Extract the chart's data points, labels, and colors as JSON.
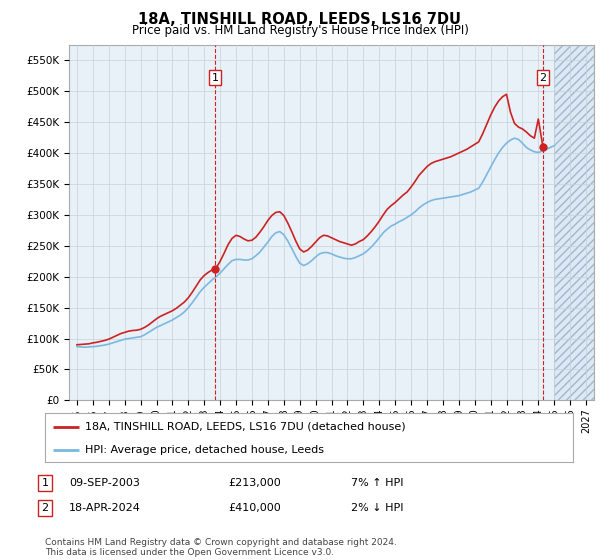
{
  "title": "18A, TINSHILL ROAD, LEEDS, LS16 7DU",
  "subtitle": "Price paid vs. HM Land Registry's House Price Index (HPI)",
  "legend_line1": "18A, TINSHILL ROAD, LEEDS, LS16 7DU (detached house)",
  "legend_line2": "HPI: Average price, detached house, Leeds",
  "annotation1": {
    "label": "1",
    "date": "09-SEP-2003",
    "price": "£213,000",
    "hpi": "7% ↑ HPI",
    "x_year": 2003.69,
    "y_val": 213000
  },
  "annotation2": {
    "label": "2",
    "date": "18-APR-2024",
    "price": "£410,000",
    "hpi": "2% ↓ HPI",
    "x_year": 2024.29,
    "y_val": 410000
  },
  "copyright": "Contains HM Land Registry data © Crown copyright and database right 2024.\nThis data is licensed under the Open Government Licence v3.0.",
  "ylim": [
    0,
    575000
  ],
  "yticks": [
    0,
    50000,
    100000,
    150000,
    200000,
    250000,
    300000,
    350000,
    400000,
    450000,
    500000,
    550000
  ],
  "ytick_labels": [
    "£0",
    "£50K",
    "£100K",
    "£150K",
    "£200K",
    "£250K",
    "£300K",
    "£350K",
    "£400K",
    "£450K",
    "£500K",
    "£550K"
  ],
  "xlim_start": 1994.5,
  "xlim_end": 2027.5,
  "xticks": [
    1995,
    1996,
    1997,
    1998,
    1999,
    2000,
    2001,
    2002,
    2003,
    2004,
    2005,
    2006,
    2007,
    2008,
    2009,
    2010,
    2011,
    2012,
    2013,
    2014,
    2015,
    2016,
    2017,
    2018,
    2019,
    2020,
    2021,
    2022,
    2023,
    2024,
    2025,
    2026,
    2027
  ],
  "hpi_color": "#7bb8e0",
  "price_color": "#cc2222",
  "bg_color": "#e8f0f8",
  "grid_color": "#c8d0d8",
  "hatch_start": 2025.0,
  "hpi_data": [
    [
      1995.0,
      87000
    ],
    [
      1995.25,
      86500
    ],
    [
      1995.5,
      86000
    ],
    [
      1995.75,
      86500
    ],
    [
      1996.0,
      87000
    ],
    [
      1996.25,
      87500
    ],
    [
      1996.5,
      88500
    ],
    [
      1996.75,
      89500
    ],
    [
      1997.0,
      91000
    ],
    [
      1997.25,
      93000
    ],
    [
      1997.5,
      95000
    ],
    [
      1997.75,
      97000
    ],
    [
      1998.0,
      99000
    ],
    [
      1998.25,
      100000
    ],
    [
      1998.5,
      101000
    ],
    [
      1998.75,
      102000
    ],
    [
      1999.0,
      103000
    ],
    [
      1999.25,
      106000
    ],
    [
      1999.5,
      110000
    ],
    [
      1999.75,
      114000
    ],
    [
      2000.0,
      118000
    ],
    [
      2000.25,
      121000
    ],
    [
      2000.5,
      124000
    ],
    [
      2000.75,
      127000
    ],
    [
      2001.0,
      130000
    ],
    [
      2001.25,
      134000
    ],
    [
      2001.5,
      138000
    ],
    [
      2001.75,
      143000
    ],
    [
      2002.0,
      150000
    ],
    [
      2002.25,
      158000
    ],
    [
      2002.5,
      167000
    ],
    [
      2002.75,
      176000
    ],
    [
      2003.0,
      183000
    ],
    [
      2003.25,
      189000
    ],
    [
      2003.5,
      195000
    ],
    [
      2003.75,
      200000
    ],
    [
      2004.0,
      206000
    ],
    [
      2004.25,
      213000
    ],
    [
      2004.5,
      220000
    ],
    [
      2004.75,
      226000
    ],
    [
      2005.0,
      228000
    ],
    [
      2005.25,
      228000
    ],
    [
      2005.5,
      227000
    ],
    [
      2005.75,
      227000
    ],
    [
      2006.0,
      229000
    ],
    [
      2006.25,
      234000
    ],
    [
      2006.5,
      240000
    ],
    [
      2006.75,
      248000
    ],
    [
      2007.0,
      256000
    ],
    [
      2007.25,
      265000
    ],
    [
      2007.5,
      271000
    ],
    [
      2007.75,
      273000
    ],
    [
      2008.0,
      268000
    ],
    [
      2008.25,
      258000
    ],
    [
      2008.5,
      246000
    ],
    [
      2008.75,
      233000
    ],
    [
      2009.0,
      222000
    ],
    [
      2009.25,
      218000
    ],
    [
      2009.5,
      221000
    ],
    [
      2009.75,
      226000
    ],
    [
      2010.0,
      232000
    ],
    [
      2010.25,
      237000
    ],
    [
      2010.5,
      239000
    ],
    [
      2010.75,
      239000
    ],
    [
      2011.0,
      237000
    ],
    [
      2011.25,
      234000
    ],
    [
      2011.5,
      232000
    ],
    [
      2011.75,
      230000
    ],
    [
      2012.0,
      229000
    ],
    [
      2012.25,
      229000
    ],
    [
      2012.5,
      231000
    ],
    [
      2012.75,
      234000
    ],
    [
      2013.0,
      237000
    ],
    [
      2013.25,
      242000
    ],
    [
      2013.5,
      248000
    ],
    [
      2013.75,
      255000
    ],
    [
      2014.0,
      263000
    ],
    [
      2014.25,
      271000
    ],
    [
      2014.5,
      277000
    ],
    [
      2014.75,
      282000
    ],
    [
      2015.0,
      285000
    ],
    [
      2015.25,
      289000
    ],
    [
      2015.5,
      292000
    ],
    [
      2015.75,
      296000
    ],
    [
      2016.0,
      300000
    ],
    [
      2016.25,
      305000
    ],
    [
      2016.5,
      311000
    ],
    [
      2016.75,
      316000
    ],
    [
      2017.0,
      320000
    ],
    [
      2017.25,
      323000
    ],
    [
      2017.5,
      325000
    ],
    [
      2017.75,
      326000
    ],
    [
      2018.0,
      327000
    ],
    [
      2018.25,
      328000
    ],
    [
      2018.5,
      329000
    ],
    [
      2018.75,
      330000
    ],
    [
      2019.0,
      331000
    ],
    [
      2019.25,
      333000
    ],
    [
      2019.5,
      335000
    ],
    [
      2019.75,
      337000
    ],
    [
      2020.0,
      340000
    ],
    [
      2020.25,
      343000
    ],
    [
      2020.5,
      353000
    ],
    [
      2020.75,
      365000
    ],
    [
      2021.0,
      377000
    ],
    [
      2021.25,
      389000
    ],
    [
      2021.5,
      400000
    ],
    [
      2021.75,
      409000
    ],
    [
      2022.0,
      416000
    ],
    [
      2022.25,
      421000
    ],
    [
      2022.5,
      424000
    ],
    [
      2022.75,
      422000
    ],
    [
      2023.0,
      416000
    ],
    [
      2023.25,
      409000
    ],
    [
      2023.5,
      405000
    ],
    [
      2023.75,
      402000
    ],
    [
      2024.0,
      401000
    ],
    [
      2024.25,
      403000
    ],
    [
      2024.5,
      406000
    ],
    [
      2024.75,
      409000
    ],
    [
      2025.0,
      412000
    ]
  ],
  "price_data": [
    [
      1995.0,
      90000
    ],
    [
      1995.25,
      90500
    ],
    [
      1995.5,
      91000
    ],
    [
      1995.75,
      91500
    ],
    [
      1996.0,
      93000
    ],
    [
      1996.25,
      94000
    ],
    [
      1996.5,
      95500
    ],
    [
      1996.75,
      97000
    ],
    [
      1997.0,
      99000
    ],
    [
      1997.25,
      102000
    ],
    [
      1997.5,
      105000
    ],
    [
      1997.75,
      108000
    ],
    [
      1998.0,
      110000
    ],
    [
      1998.25,
      112000
    ],
    [
      1998.5,
      113000
    ],
    [
      1998.75,
      113500
    ],
    [
      1999.0,
      115000
    ],
    [
      1999.25,
      118000
    ],
    [
      1999.5,
      122000
    ],
    [
      1999.75,
      127000
    ],
    [
      2000.0,
      132000
    ],
    [
      2000.25,
      136000
    ],
    [
      2000.5,
      139000
    ],
    [
      2000.75,
      142000
    ],
    [
      2001.0,
      145000
    ],
    [
      2001.25,
      149000
    ],
    [
      2001.5,
      154000
    ],
    [
      2001.75,
      159000
    ],
    [
      2002.0,
      166000
    ],
    [
      2002.25,
      175000
    ],
    [
      2002.5,
      185000
    ],
    [
      2002.75,
      195000
    ],
    [
      2003.0,
      202000
    ],
    [
      2003.25,
      207000
    ],
    [
      2003.5,
      211000
    ],
    [
      2003.69,
      213000
    ],
    [
      2003.75,
      214000
    ],
    [
      2004.0,
      225000
    ],
    [
      2004.25,
      238000
    ],
    [
      2004.5,
      252000
    ],
    [
      2004.75,
      262000
    ],
    [
      2005.0,
      267000
    ],
    [
      2005.25,
      265000
    ],
    [
      2005.5,
      261000
    ],
    [
      2005.75,
      258000
    ],
    [
      2006.0,
      259000
    ],
    [
      2006.25,
      264000
    ],
    [
      2006.5,
      272000
    ],
    [
      2006.75,
      281000
    ],
    [
      2007.0,
      291000
    ],
    [
      2007.25,
      299000
    ],
    [
      2007.5,
      304000
    ],
    [
      2007.75,
      305000
    ],
    [
      2008.0,
      299000
    ],
    [
      2008.25,
      287000
    ],
    [
      2008.5,
      273000
    ],
    [
      2008.75,
      258000
    ],
    [
      2009.0,
      245000
    ],
    [
      2009.25,
      240000
    ],
    [
      2009.5,
      243000
    ],
    [
      2009.75,
      249000
    ],
    [
      2010.0,
      256000
    ],
    [
      2010.25,
      263000
    ],
    [
      2010.5,
      267000
    ],
    [
      2010.75,
      266000
    ],
    [
      2011.0,
      263000
    ],
    [
      2011.25,
      260000
    ],
    [
      2011.5,
      257000
    ],
    [
      2011.75,
      255000
    ],
    [
      2012.0,
      253000
    ],
    [
      2012.25,
      251000
    ],
    [
      2012.5,
      253000
    ],
    [
      2012.75,
      257000
    ],
    [
      2013.0,
      260000
    ],
    [
      2013.25,
      266000
    ],
    [
      2013.5,
      273000
    ],
    [
      2013.75,
      281000
    ],
    [
      2014.0,
      290000
    ],
    [
      2014.25,
      300000
    ],
    [
      2014.5,
      309000
    ],
    [
      2014.75,
      315000
    ],
    [
      2015.0,
      320000
    ],
    [
      2015.25,
      326000
    ],
    [
      2015.5,
      332000
    ],
    [
      2015.75,
      337000
    ],
    [
      2016.0,
      345000
    ],
    [
      2016.25,
      354000
    ],
    [
      2016.5,
      364000
    ],
    [
      2016.75,
      371000
    ],
    [
      2017.0,
      378000
    ],
    [
      2017.25,
      383000
    ],
    [
      2017.5,
      386000
    ],
    [
      2017.75,
      388000
    ],
    [
      2018.0,
      390000
    ],
    [
      2018.25,
      392000
    ],
    [
      2018.5,
      394000
    ],
    [
      2018.75,
      397000
    ],
    [
      2019.0,
      400000
    ],
    [
      2019.25,
      403000
    ],
    [
      2019.5,
      406000
    ],
    [
      2019.75,
      410000
    ],
    [
      2020.0,
      414000
    ],
    [
      2020.25,
      418000
    ],
    [
      2020.5,
      431000
    ],
    [
      2020.75,
      446000
    ],
    [
      2021.0,
      461000
    ],
    [
      2021.25,
      474000
    ],
    [
      2021.5,
      484000
    ],
    [
      2021.75,
      491000
    ],
    [
      2022.0,
      495000
    ],
    [
      2022.25,
      466000
    ],
    [
      2022.5,
      448000
    ],
    [
      2022.75,
      442000
    ],
    [
      2023.0,
      439000
    ],
    [
      2023.25,
      434000
    ],
    [
      2023.5,
      428000
    ],
    [
      2023.75,
      424000
    ],
    [
      2024.0,
      455000
    ],
    [
      2024.29,
      410000
    ]
  ]
}
